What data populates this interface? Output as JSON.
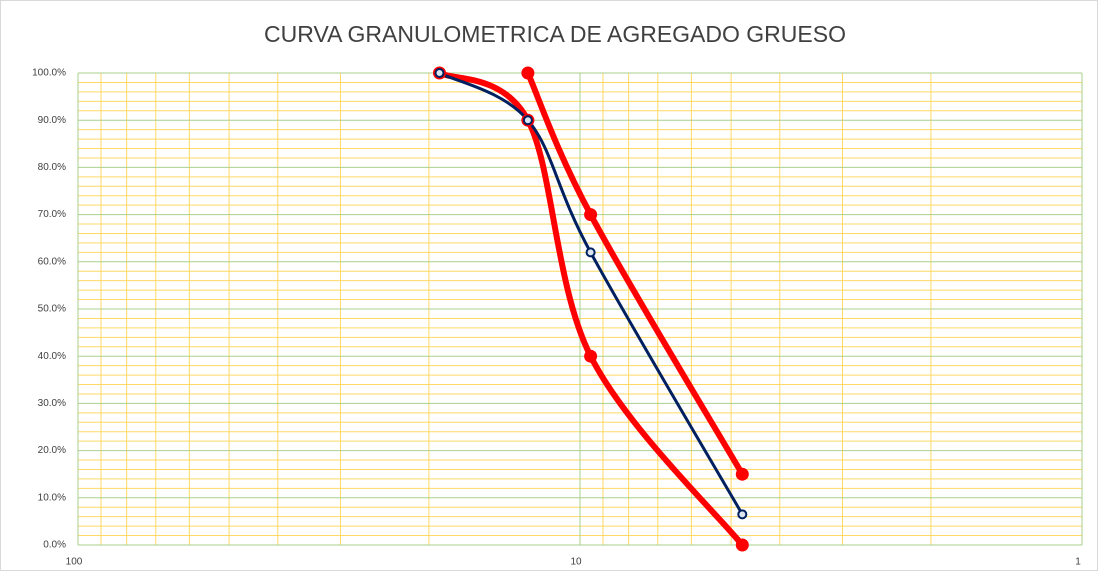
{
  "chart_data": {
    "type": "line",
    "title": "CURVA GRANULOMETRICA DE AGREGADO GRUESO",
    "xscale": "log",
    "xlim": [
      100,
      1
    ],
    "xticks": [
      100,
      10,
      1
    ],
    "xminorticks": [
      90,
      80,
      70,
      60,
      50,
      40,
      30,
      20,
      9,
      8,
      7,
      6,
      5,
      4,
      3,
      2
    ],
    "ylim": [
      0,
      100
    ],
    "yticks": [
      {
        "value": 0,
        "label": "0.0%"
      },
      {
        "value": 10,
        "label": "10.0%"
      },
      {
        "value": 20,
        "label": "20.0%"
      },
      {
        "value": 30,
        "label": "30.0%"
      },
      {
        "value": 40,
        "label": "40.0%"
      },
      {
        "value": 50,
        "label": "50.0%"
      },
      {
        "value": 60,
        "label": "60.0%"
      },
      {
        "value": 70,
        "label": "70.0%"
      },
      {
        "value": 80,
        "label": "80.0%"
      },
      {
        "value": 90,
        "label": "90.0%"
      },
      {
        "value": 100,
        "label": "100.0%"
      }
    ],
    "yminorticks": [
      2,
      4,
      6,
      8,
      12,
      14,
      16,
      18,
      22,
      24,
      26,
      28,
      32,
      34,
      36,
      38,
      42,
      44,
      46,
      48,
      52,
      54,
      56,
      58,
      62,
      64,
      66,
      68,
      72,
      74,
      76,
      78,
      82,
      84,
      86,
      88,
      92,
      94,
      96,
      98
    ],
    "grid": true,
    "grid_color": "#a9d08e",
    "minor_grid_color": "#ffd966",
    "smooth": true,
    "series": [
      {
        "color": "#ff0000",
        "x": [
          12.7,
          9.525,
          4.75
        ],
        "values": [
          100,
          70,
          15
        ],
        "line_width": 6,
        "marker_radius": 6
      },
      {
        "color": "#ff0000",
        "x": [
          19.05,
          12.7,
          9.525,
          4.75
        ],
        "values": [
          100,
          90,
          40,
          0
        ],
        "line_width": 6,
        "marker_radius": 6
      },
      {
        "color": "#002060",
        "x": [
          19.05,
          12.7,
          9.525,
          4.75
        ],
        "values": [
          100,
          90,
          62,
          6.5
        ],
        "line_width": 3,
        "marker_radius": 4
      }
    ]
  }
}
